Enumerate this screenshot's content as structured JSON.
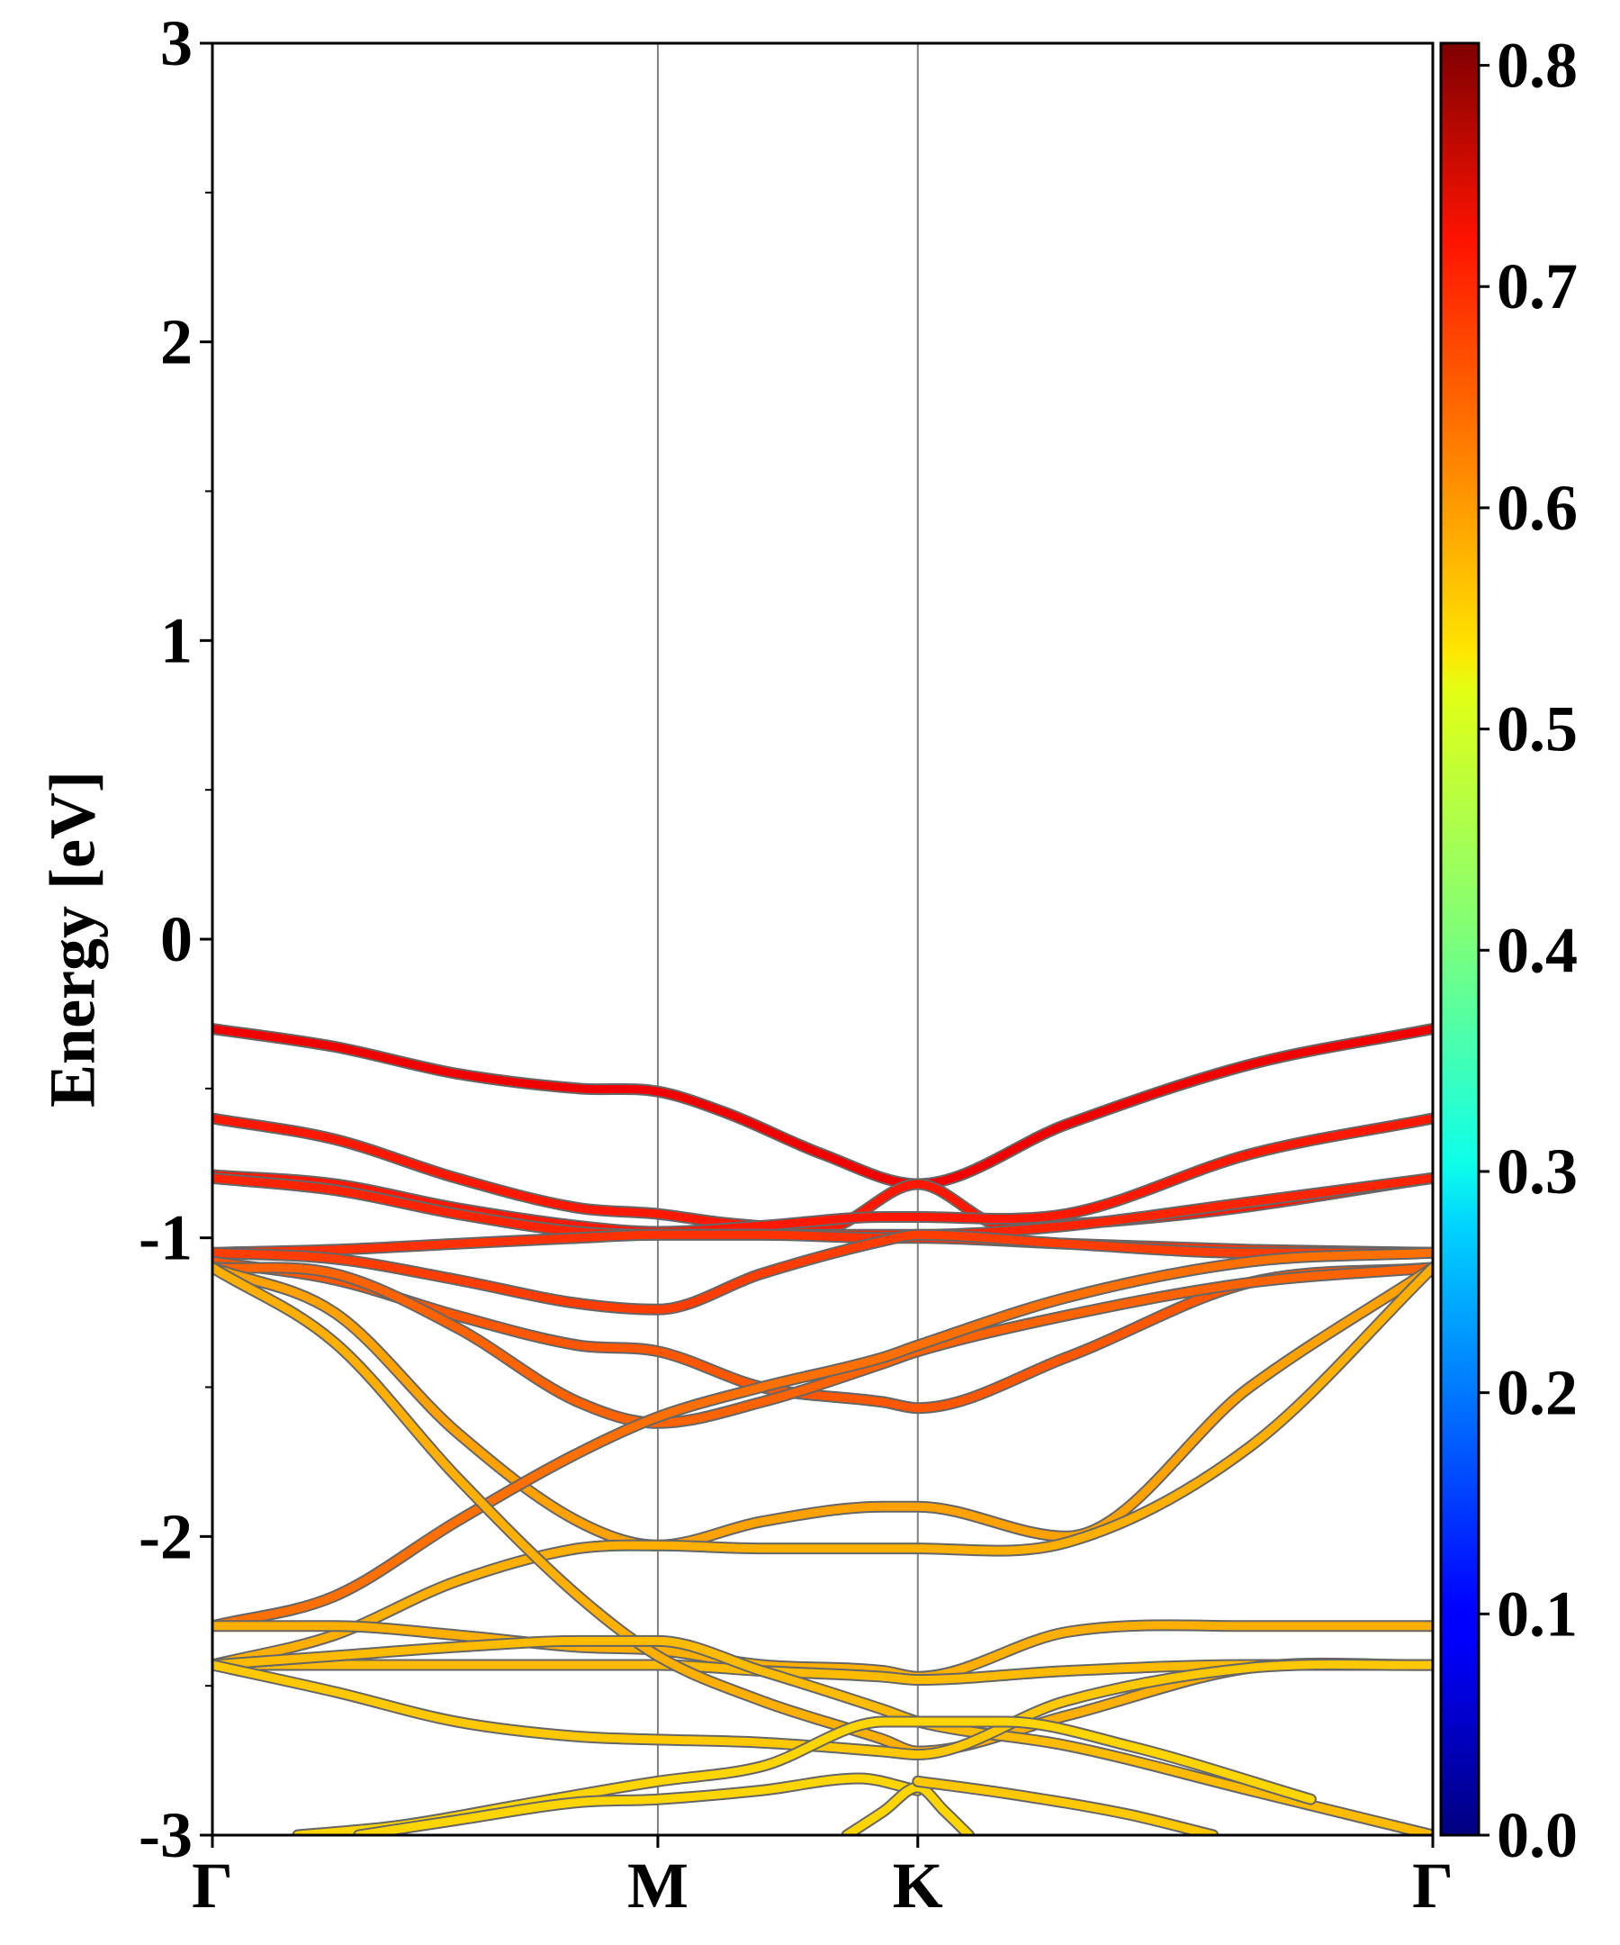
{
  "chart_data": {
    "type": "line",
    "title": "",
    "xlabel": "",
    "ylabel": "Energy [eV]",
    "ylim": [
      -3,
      3
    ],
    "yticks": [
      "-3",
      "-2",
      "-1",
      "0",
      "1",
      "2",
      "3"
    ],
    "xlim": [
      0,
      1
    ],
    "x_ticks": [
      {
        "label": "Γ",
        "pos": 0
      },
      {
        "label": "M",
        "pos": 0.365
      },
      {
        "label": "K",
        "pos": 0.578
      },
      {
        "label": "Γ",
        "pos": 1
      }
    ],
    "grid": false,
    "vertical_lines_at": [
      0.365,
      0.578
    ],
    "colorbar": {
      "colormap": "jet",
      "range": [
        0.0,
        0.81
      ],
      "ticks": [
        "0.0",
        "0.1",
        "0.2",
        "0.3",
        "0.4",
        "0.5",
        "0.6",
        "0.7",
        "0.8"
      ]
    },
    "series": [
      {
        "x": [
          0,
          0.1,
          0.2,
          0.3,
          0.365,
          0.42,
          0.5,
          0.578,
          0.7,
          0.85,
          1
        ],
        "values": [
          -0.3,
          -0.36,
          -0.45,
          -0.5,
          -0.51,
          -0.58,
          -0.72,
          -0.82,
          -0.62,
          -0.42,
          -0.3
        ],
        "weight": 0.72
      },
      {
        "x": [
          0,
          0.1,
          0.2,
          0.3,
          0.365,
          0.42,
          0.5,
          0.578,
          0.65,
          0.8,
          1
        ],
        "values": [
          -0.6,
          -0.67,
          -0.8,
          -0.9,
          -0.92,
          -0.95,
          -0.97,
          -0.82,
          -0.96,
          -0.92,
          -0.8
        ],
        "weight": 0.69
      },
      {
        "x": [
          0,
          0.1,
          0.2,
          0.3,
          0.365,
          0.45,
          0.55,
          0.578,
          0.7,
          0.85,
          1
        ],
        "values": [
          -0.79,
          -0.82,
          -0.9,
          -0.96,
          -0.98,
          -0.96,
          -0.93,
          -0.93,
          -0.92,
          -0.72,
          -0.6
        ],
        "weight": 0.69
      },
      {
        "x": [
          0,
          0.1,
          0.2,
          0.3,
          0.365,
          0.45,
          0.55,
          0.578,
          0.7,
          0.85,
          1
        ],
        "values": [
          -0.8,
          -0.84,
          -0.92,
          -0.98,
          -0.99,
          -0.99,
          -0.99,
          -0.99,
          -0.96,
          -0.88,
          -0.8
        ],
        "weight": 0.68
      },
      {
        "x": [
          0,
          0.1,
          0.2,
          0.3,
          0.365,
          0.45,
          0.55,
          0.578,
          0.7,
          0.85,
          1
        ],
        "values": [
          -1.05,
          -1.04,
          -1.02,
          -1.0,
          -0.99,
          -0.99,
          -1.0,
          -1.0,
          -1.02,
          -1.04,
          -1.05
        ],
        "weight": 0.67
      },
      {
        "x": [
          0,
          0.1,
          0.2,
          0.3,
          0.365,
          0.45,
          0.55,
          0.578,
          0.7,
          0.85,
          1
        ],
        "values": [
          -1.05,
          -1.07,
          -1.14,
          -1.22,
          -1.24,
          -1.12,
          -1.01,
          -0.99,
          -1.02,
          -1.05,
          -1.05
        ],
        "weight": 0.66
      },
      {
        "x": [
          0,
          0.1,
          0.2,
          0.3,
          0.365,
          0.45,
          0.55,
          0.578,
          0.7,
          0.85,
          1
        ],
        "values": [
          -1.08,
          -1.14,
          -1.26,
          -1.36,
          -1.38,
          -1.5,
          -1.55,
          -1.57,
          -1.4,
          -1.15,
          -1.1
        ],
        "weight": 0.64
      },
      {
        "x": [
          0,
          0.1,
          0.2,
          0.3,
          0.365,
          0.45,
          0.55,
          0.578,
          0.7,
          0.85,
          1
        ],
        "values": [
          -1.1,
          -1.12,
          -1.3,
          -1.55,
          -1.62,
          -1.55,
          -1.42,
          -1.38,
          -1.26,
          -1.15,
          -1.1
        ],
        "weight": 0.63
      },
      {
        "x": [
          0,
          0.1,
          0.2,
          0.3,
          0.365,
          0.45,
          0.55,
          0.578,
          0.7,
          0.85,
          1
        ],
        "values": [
          -1.1,
          -1.25,
          -1.65,
          -1.95,
          -2.03,
          -1.95,
          -1.9,
          -1.9,
          -2.0,
          -1.5,
          -1.1
        ],
        "weight": 0.58
      },
      {
        "x": [
          0,
          0.1,
          0.2,
          0.3,
          0.365,
          0.45,
          0.55,
          0.578,
          0.7,
          0.85,
          1
        ],
        "values": [
          -2.3,
          -2.2,
          -1.95,
          -1.72,
          -1.6,
          -1.5,
          -1.4,
          -1.36,
          -1.2,
          -1.08,
          -1.05
        ],
        "weight": 0.62
      },
      {
        "x": [
          0,
          0.1,
          0.2,
          0.3,
          0.365,
          0.45,
          0.55,
          0.578,
          0.7,
          0.85,
          1
        ],
        "values": [
          -2.43,
          -2.33,
          -2.15,
          -2.04,
          -2.03,
          -2.04,
          -2.04,
          -2.04,
          -2.02,
          -1.7,
          -1.1
        ],
        "weight": 0.57
      },
      {
        "x": [
          0,
          0.1,
          0.2,
          0.3,
          0.365,
          0.45,
          0.55,
          0.578,
          0.7,
          0.85,
          1
        ],
        "values": [
          -2.3,
          -2.3,
          -2.33,
          -2.37,
          -2.38,
          -2.43,
          -2.45,
          -2.47,
          -2.32,
          -2.3,
          -2.3
        ],
        "weight": 0.57
      },
      {
        "x": [
          0,
          0.1,
          0.2,
          0.3,
          0.365,
          0.45,
          0.55,
          0.578,
          0.7,
          0.85,
          1
        ],
        "values": [
          -2.43,
          -2.43,
          -2.43,
          -2.43,
          -2.43,
          -2.45,
          -2.47,
          -2.48,
          -2.45,
          -2.43,
          -2.43
        ],
        "weight": 0.56
      },
      {
        "x": [
          0,
          0.1,
          0.2,
          0.3,
          0.365,
          0.45,
          0.55,
          0.578,
          0.7,
          0.85,
          1
        ],
        "values": [
          -1.1,
          -1.35,
          -1.8,
          -2.2,
          -2.4,
          -2.55,
          -2.68,
          -2.72,
          -2.6,
          -2.44,
          -2.43
        ],
        "weight": 0.57
      },
      {
        "x": [
          0,
          0.1,
          0.2,
          0.3,
          0.365,
          0.45,
          0.55,
          0.578,
          0.7,
          0.85,
          1
        ],
        "values": [
          -2.43,
          -2.4,
          -2.37,
          -2.35,
          -2.35,
          -2.45,
          -2.58,
          -2.62,
          -2.7,
          -2.85,
          -3.0
        ],
        "weight": 0.56
      },
      {
        "x": [
          0,
          0.1,
          0.2,
          0.3,
          0.365,
          0.45,
          0.55,
          0.578,
          0.7,
          0.85,
          1
        ],
        "values": [
          -2.43,
          -2.52,
          -2.62,
          -2.67,
          -2.68,
          -2.69,
          -2.72,
          -2.73,
          -2.55,
          -2.44,
          -2.43
        ],
        "weight": 0.55
      },
      {
        "x": [
          0.07,
          0.15,
          0.25,
          0.32,
          0.365,
          0.45,
          0.55,
          0.578,
          0.65,
          0.75,
          0.9
        ],
        "values": [
          -3.0,
          -2.97,
          -2.9,
          -2.85,
          -2.82,
          -2.77,
          -2.62,
          -2.62,
          -2.62,
          -2.7,
          -2.88
        ],
        "weight": 0.54
      },
      {
        "x": [
          0.12,
          0.2,
          0.3,
          0.365,
          0.45,
          0.53,
          0.578
        ],
        "values": [
          -3.0,
          -2.95,
          -2.89,
          -2.88,
          -2.85,
          -2.81,
          -2.85
        ],
        "weight": 0.54
      },
      {
        "x": [
          0.52,
          0.55,
          0.578,
          0.6,
          0.62
        ],
        "values": [
          -3.0,
          -2.92,
          -2.84,
          -2.92,
          -3.0
        ],
        "weight": 0.54
      },
      {
        "x": [
          0.578,
          0.65,
          0.75,
          0.82
        ],
        "values": [
          -2.82,
          -2.86,
          -2.93,
          -3.0
        ],
        "weight": 0.55
      }
    ]
  }
}
